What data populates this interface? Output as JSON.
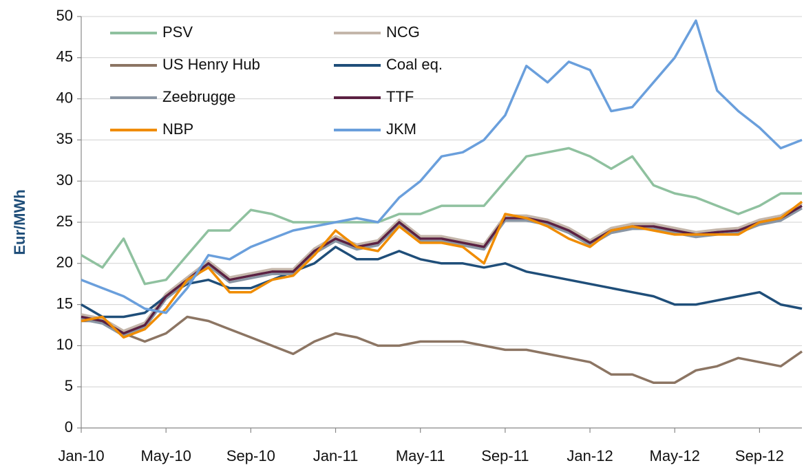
{
  "chart_data": {
    "type": "line",
    "y_label": "Eur/MWh",
    "categories": [
      "Jan-10",
      null,
      null,
      null,
      "May-10",
      null,
      null,
      null,
      "Sep-10",
      null,
      null,
      null,
      "Jan-11",
      null,
      null,
      null,
      "May-11",
      null,
      null,
      null,
      "Sep-11",
      null,
      null,
      null,
      "Jan-12",
      null,
      null,
      null,
      "May-12",
      null,
      null,
      null,
      "Sep-12",
      null,
      null
    ],
    "series": [
      {
        "name": "PSV",
        "color": "#8fc19f",
        "values": [
          21,
          19.5,
          23,
          17.5,
          18,
          21,
          24,
          24,
          26.5,
          26,
          25,
          25,
          25,
          25,
          25,
          26,
          26,
          27,
          27,
          27,
          30,
          33,
          33.5,
          34,
          33,
          31.5,
          33,
          29.5,
          28.5,
          28,
          27,
          26,
          27,
          28.5,
          28.5
        ]
      },
      {
        "name": "NCG",
        "color": "#c4b6aa",
        "values": [
          13.8,
          13.3,
          11.8,
          12.8,
          16.3,
          18.3,
          20.3,
          18.3,
          18.8,
          19.3,
          19.3,
          21.8,
          23.3,
          22.3,
          22.8,
          25.3,
          23.3,
          23.3,
          22.8,
          22.3,
          25.8,
          25.8,
          25.3,
          24.3,
          22.8,
          24.3,
          24.8,
          24.8,
          24.3,
          23.8,
          24.1,
          24.3,
          25.3,
          25.8,
          27.3
        ]
      },
      {
        "name": "US Henry Hub",
        "color": "#8c7563",
        "values": [
          13,
          13,
          11.5,
          10.5,
          11.5,
          13.5,
          13,
          12,
          11,
          10,
          9,
          10.5,
          11.5,
          11,
          10,
          10,
          10.5,
          10.5,
          10.5,
          10,
          9.5,
          9.5,
          9,
          8.5,
          8,
          6.5,
          6.5,
          5.5,
          5.5,
          7,
          7.5,
          8.5,
          8,
          7.5,
          9.3
        ]
      },
      {
        "name": "Coal eq.",
        "color": "#1f4e79",
        "values": [
          15,
          13.5,
          13.5,
          14,
          16,
          17.5,
          18,
          17,
          17,
          18,
          19,
          20,
          22,
          20.5,
          20.5,
          21.5,
          20.5,
          20,
          20,
          19.5,
          20,
          19,
          18.5,
          18,
          17.5,
          17,
          16.5,
          16,
          15,
          15,
          15.5,
          16,
          16.5,
          15,
          14.5
        ]
      },
      {
        "name": "Zeebrugge",
        "color": "#8a96a4",
        "values": [
          13.2,
          12.7,
          11.2,
          12.2,
          15.7,
          17.7,
          19.7,
          17.7,
          18.2,
          18.7,
          18.7,
          21.2,
          22.7,
          21.7,
          22.2,
          24.7,
          22.7,
          22.7,
          22.2,
          21.7,
          25.2,
          25.2,
          24.7,
          23.7,
          22.2,
          23.7,
          24.2,
          24.2,
          23.7,
          23.2,
          23.5,
          23.7,
          24.7,
          25.2,
          26.7
        ]
      },
      {
        "name": "TTF",
        "color": "#5b2142",
        "values": [
          13.5,
          13,
          11.5,
          12.5,
          16,
          18,
          20,
          18,
          18.5,
          19,
          19,
          21.5,
          23,
          22,
          22.5,
          25,
          23,
          23,
          22.5,
          22,
          25.5,
          25.5,
          25,
          24,
          22.5,
          24,
          24.5,
          24.5,
          24,
          23.5,
          23.8,
          24,
          25,
          25.5,
          27
        ]
      },
      {
        "name": "NBP",
        "color": "#f08c00",
        "values": [
          13,
          13.5,
          11,
          12,
          14.5,
          18,
          19.5,
          16.5,
          16.5,
          18,
          18.5,
          21,
          24,
          22,
          21.5,
          24.5,
          22.5,
          22.5,
          22,
          20,
          26,
          25.5,
          24.5,
          23,
          22,
          24,
          24.5,
          24,
          23.5,
          23.5,
          23.5,
          23.5,
          25,
          25.5,
          27.5
        ]
      },
      {
        "name": "JKM",
        "color": "#6a9fdc",
        "values": [
          18,
          17,
          16,
          14.5,
          14,
          17,
          21,
          20.5,
          22,
          23,
          24,
          24.5,
          25,
          25.5,
          25,
          28,
          30,
          33,
          33.5,
          35,
          38,
          44,
          42,
          44.5,
          43.5,
          38.5,
          39,
          42,
          45,
          49.5,
          41,
          38.5,
          36.5,
          34,
          35
        ]
      }
    ],
    "ylim": [
      0,
      50
    ],
    "yticks": [
      0,
      5,
      10,
      15,
      20,
      25,
      30,
      35,
      40,
      45,
      50
    ],
    "grid": true,
    "legend": "upper-left"
  }
}
